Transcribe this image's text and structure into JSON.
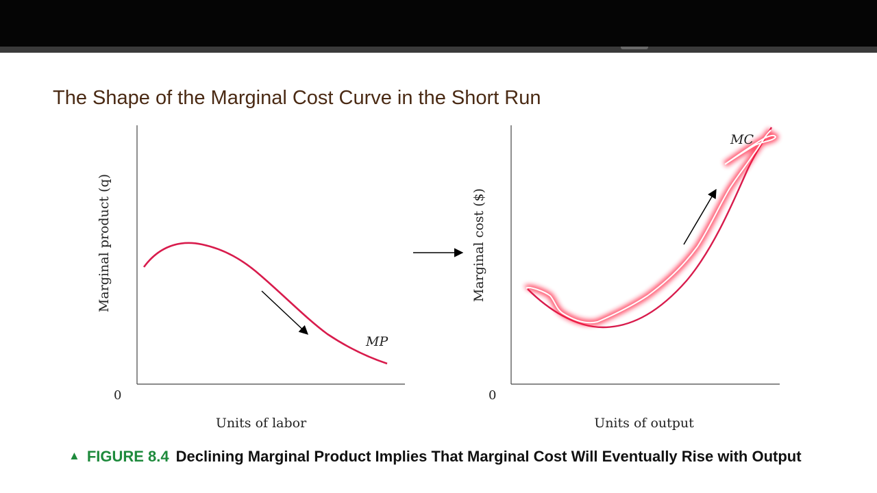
{
  "slide": {
    "title": "The Shape of the Marginal Cost Curve in the Short Run"
  },
  "left_panel": {
    "y_axis_label": "Marginal product (q)",
    "x_axis_label": "Units of labor",
    "origin_label": "0",
    "curve_label": "MP"
  },
  "right_panel": {
    "y_axis_label": "Marginal cost ($)",
    "x_axis_label": "Units of output",
    "origin_label": "0",
    "curve_label": "MC"
  },
  "caption": {
    "marker": "▲",
    "figure_number": "FIGURE 8.4",
    "text": "Declining Marginal Product Implies That Marginal Cost Will Eventually Rise with Output"
  },
  "colors": {
    "curve": "#d81b4c",
    "annotation_glow": "#ff1a3c",
    "title": "#4a2a14",
    "figure_label": "#1e8a3c",
    "top_bar": "#050505"
  }
}
